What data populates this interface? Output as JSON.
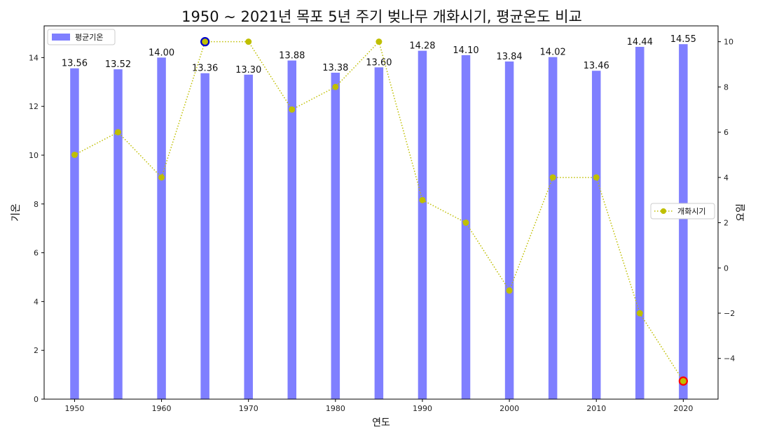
{
  "chart_data": {
    "type": "bar+line",
    "title": "1950 ~ 2021년 목포 5년 주기 벚나무 개화시기, 평균온도 비교",
    "xlabel": "연도",
    "ylabel_left": "기온",
    "ylabel_right": "요일",
    "x": [
      1950,
      1955,
      1960,
      1965,
      1970,
      1975,
      1980,
      1985,
      1990,
      1995,
      2000,
      2005,
      2010,
      2015,
      2020
    ],
    "x_ticks": [
      "1950",
      "1960",
      "1970",
      "1980",
      "1990",
      "2000",
      "2010",
      "2020"
    ],
    "ylim_left": [
      0,
      15.3
    ],
    "y_ticks_left": [
      "0",
      "2",
      "4",
      "6",
      "8",
      "10",
      "12",
      "14"
    ],
    "ylim_right": [
      -5.8,
      10.7
    ],
    "y_ticks_right": [
      "−4",
      "−2",
      "0",
      "2",
      "4",
      "6",
      "8",
      "10"
    ],
    "series": [
      {
        "name": "평균기온",
        "kind": "bar",
        "axis": "left",
        "color": "#7f7fff",
        "values": [
          13.56,
          13.52,
          14.0,
          13.36,
          13.3,
          13.88,
          13.38,
          13.6,
          14.28,
          14.1,
          13.84,
          14.02,
          13.46,
          14.44,
          14.55
        ],
        "labels": [
          "13.56",
          "13.52",
          "14.00",
          "13.36",
          "13.30",
          "13.88",
          "13.38",
          "13.60",
          "14.28",
          "14.10",
          "13.84",
          "14.02",
          "13.46",
          "14.44",
          "14.55"
        ]
      },
      {
        "name": "개화시기",
        "kind": "line",
        "style": "dotted",
        "marker": "circle",
        "axis": "right",
        "color": "#bfbf00",
        "values": [
          5,
          6,
          4,
          10,
          10,
          7,
          8,
          10,
          3,
          2,
          -1,
          4,
          4,
          -2,
          -5
        ]
      }
    ],
    "highlights": [
      {
        "x": 1965,
        "value": 10,
        "edge_color": "#0000cc"
      },
      {
        "x": 2020,
        "value": -5,
        "edge_color": "#ff0000"
      }
    ],
    "legend_bar_position": "upper-left",
    "legend_line_position": "center-right",
    "grid": false
  }
}
